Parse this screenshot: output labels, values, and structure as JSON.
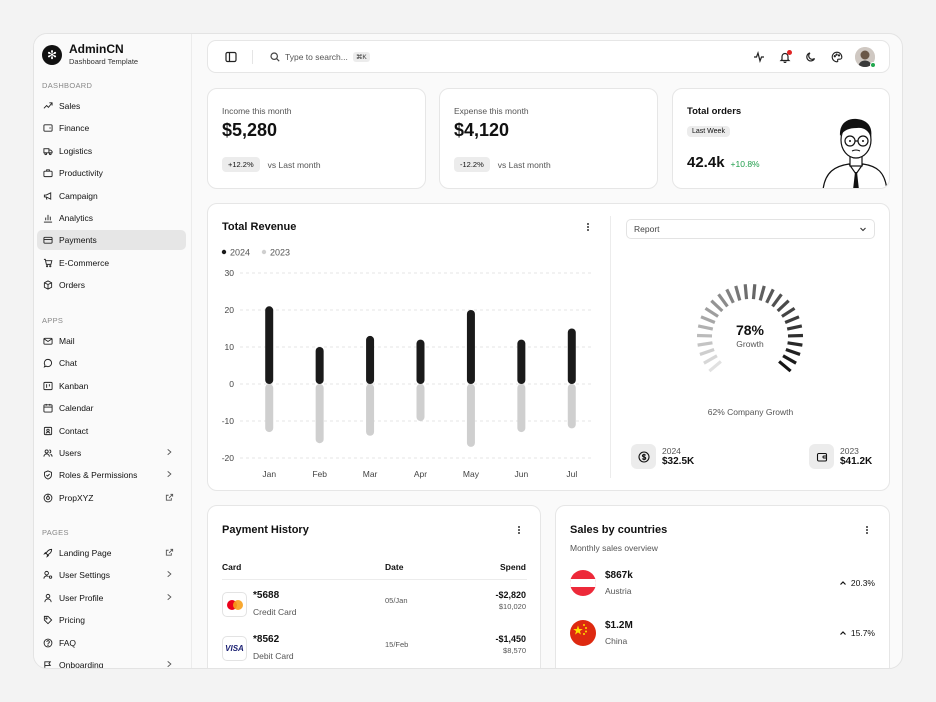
{
  "brand": {
    "name": "AdminCN",
    "subtitle": "Dashboard Template"
  },
  "sidebar": {
    "sections": [
      {
        "label": "DASHBOARD",
        "items": [
          {
            "label": "Sales",
            "icon": "trend-icon"
          },
          {
            "label": "Finance",
            "icon": "wallet-icon"
          },
          {
            "label": "Logistics",
            "icon": "truck-icon"
          },
          {
            "label": "Productivity",
            "icon": "briefcase-icon"
          },
          {
            "label": "Campaign",
            "icon": "megaphone-icon"
          },
          {
            "label": "Analytics",
            "icon": "bar-chart-icon"
          },
          {
            "label": "Payments",
            "icon": "credit-card-icon",
            "active": true
          },
          {
            "label": "E-Commerce",
            "icon": "cart-icon"
          },
          {
            "label": "Orders",
            "icon": "box-icon"
          }
        ]
      },
      {
        "label": "APPS",
        "items": [
          {
            "label": "Mail",
            "icon": "mail-icon"
          },
          {
            "label": "Chat",
            "icon": "chat-icon"
          },
          {
            "label": "Kanban",
            "icon": "kanban-icon"
          },
          {
            "label": "Calendar",
            "icon": "calendar-icon"
          },
          {
            "label": "Contact",
            "icon": "contact-icon"
          },
          {
            "label": "Users",
            "icon": "users-icon",
            "trail": "chevron-right-icon"
          },
          {
            "label": "Roles & Permissions",
            "icon": "shield-icon",
            "trail": "chevron-right-icon"
          },
          {
            "label": "PropXYZ",
            "icon": "prop-icon",
            "trail": "external-link-icon"
          }
        ]
      },
      {
        "label": "PAGES",
        "items": [
          {
            "label": "Landing Page",
            "icon": "rocket-icon",
            "trail": "external-link-icon"
          },
          {
            "label": "User Settings",
            "icon": "user-settings-icon",
            "trail": "chevron-right-icon"
          },
          {
            "label": "User Profile",
            "icon": "user-icon",
            "trail": "chevron-right-icon"
          },
          {
            "label": "Pricing",
            "icon": "tag-icon"
          },
          {
            "label": "FAQ",
            "icon": "help-icon"
          },
          {
            "label": "Onboarding",
            "icon": "onboarding-icon",
            "trail": "chevron-right-icon"
          }
        ]
      }
    ]
  },
  "topbar": {
    "search_placeholder": "Type to search...",
    "shortcut": "⌘K"
  },
  "income": {
    "label": "Income this month",
    "value": "$5,280",
    "change": "+12.2%",
    "compare": "vs Last month"
  },
  "expense": {
    "label": "Expense this month",
    "value": "$4,120",
    "change": "-12.2%",
    "compare": "vs Last month"
  },
  "orders": {
    "label": "Total orders",
    "period": "Last Week",
    "value": "42.4k",
    "change": "+10.8%",
    "positive_color": "#1f9d4a"
  },
  "revenue": {
    "title": "Total Revenue",
    "report_select": "Report",
    "growth_value": "78%",
    "growth_label": "Growth",
    "growth_caption": "62% Company Growth",
    "stat_2024": {
      "year": "2024",
      "value": "$32.5K"
    },
    "stat_2023": {
      "year": "2023",
      "value": "$41.2K"
    }
  },
  "chart_data": {
    "type": "bar",
    "categories": [
      "Jan",
      "Feb",
      "Mar",
      "Apr",
      "May",
      "Jun",
      "Jul"
    ],
    "series": [
      {
        "name": "2024",
        "values": [
          21,
          10,
          13,
          12,
          20,
          12,
          15
        ],
        "color": "#1a1a1a"
      },
      {
        "name": "2023",
        "values": [
          -13,
          -16,
          -14,
          -10,
          -17,
          -13,
          -12
        ],
        "color": "#cfcfcf"
      }
    ],
    "ylim": [
      -20,
      30
    ],
    "yticks": [
      "30",
      "20",
      "10",
      "0",
      "-10",
      "-20"
    ],
    "grid": true,
    "legend": "top-left"
  },
  "payments": {
    "title": "Payment History",
    "headers": {
      "card": "Card",
      "date": "Date",
      "spend": "Spend"
    },
    "rows": [
      {
        "card": "*5688",
        "type": "Credit Card",
        "brand": "mastercard",
        "date": "05/Jan",
        "spend": "-$2,820",
        "balance": "$10,020"
      },
      {
        "card": "*8562",
        "type": "Debit Card",
        "brand": "VISA",
        "date": "15/Feb",
        "spend": "-$1,450",
        "balance": "$8,570"
      }
    ]
  },
  "countries": {
    "title": "Sales by countries",
    "subtitle": "Monthly sales overview",
    "rows": [
      {
        "value": "$867k",
        "country": "Austria",
        "change": "20.3%"
      },
      {
        "value": "$1.2M",
        "country": "China",
        "change": "15.7%"
      }
    ]
  }
}
